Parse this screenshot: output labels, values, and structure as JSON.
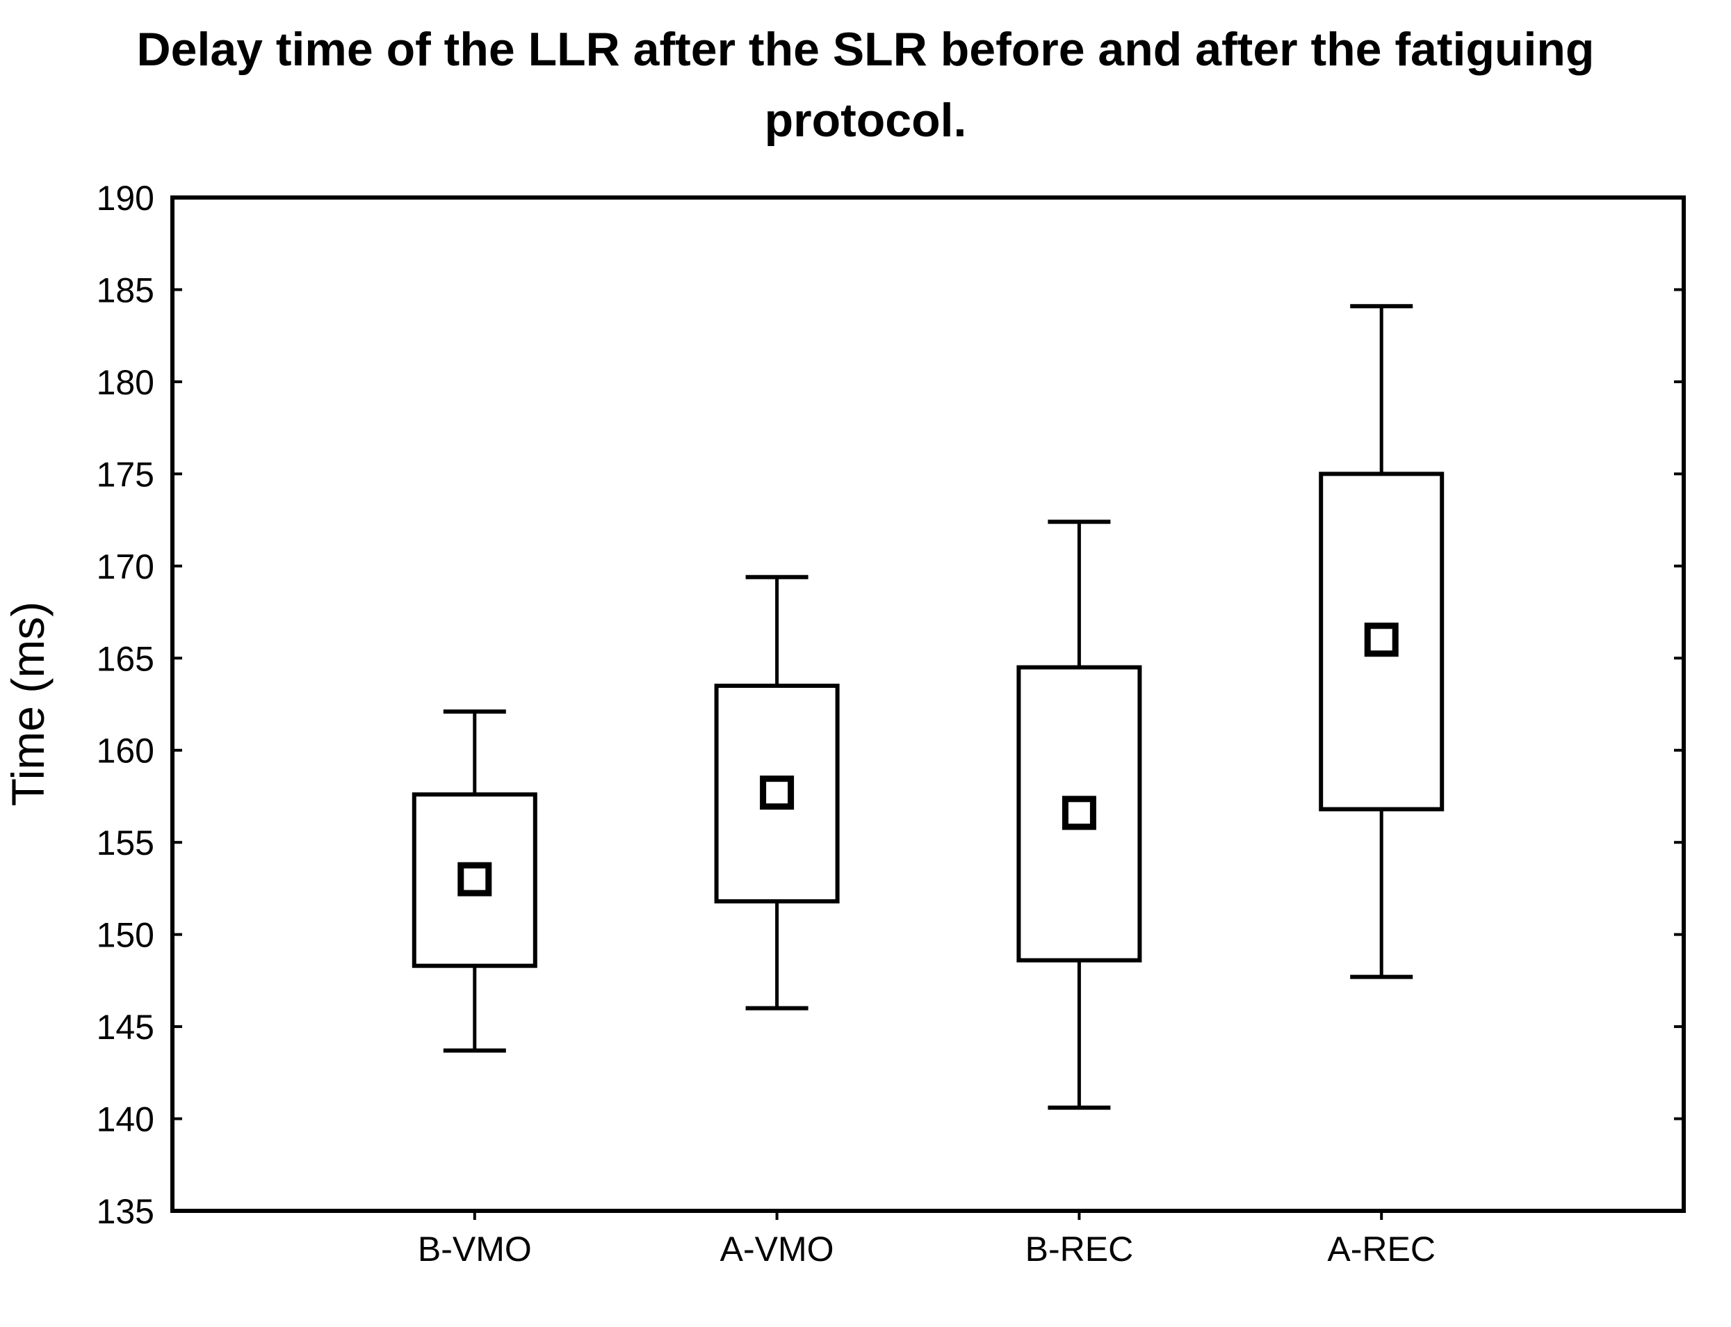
{
  "page": {
    "background": "#ffffff"
  },
  "chart_data": {
    "type": "box",
    "title": "Delay time of the LLR after the SLR before and after the fatiguing protocol.",
    "title_lines": [
      "Delay time of the LLR after the SLR before and after the fatiguing",
      "protocol."
    ],
    "ylabel": "Time (ms)",
    "xlabel": "",
    "categories": [
      "B-VMO",
      "A-VMO",
      "B-REC",
      "A-REC"
    ],
    "ylim": [
      135,
      190
    ],
    "yticks": [
      135,
      140,
      145,
      150,
      155,
      160,
      165,
      170,
      175,
      180,
      185,
      190
    ],
    "grid": false,
    "legend": false,
    "marker": "open-square-mean",
    "series": [
      {
        "name": "B-VMO",
        "whisker_low": 143.7,
        "q1": 148.3,
        "mean": 153.0,
        "q3": 157.6,
        "whisker_high": 162.1
      },
      {
        "name": "A-VMO",
        "whisker_low": 146.0,
        "q1": 151.8,
        "mean": 157.7,
        "q3": 163.5,
        "whisker_high": 169.4
      },
      {
        "name": "B-REC",
        "whisker_low": 140.6,
        "q1": 148.6,
        "mean": 156.6,
        "q3": 164.5,
        "whisker_high": 172.4
      },
      {
        "name": "A-REC",
        "whisker_low": 147.7,
        "q1": 156.8,
        "mean": 166.0,
        "q3": 175.0,
        "whisker_high": 184.1
      }
    ],
    "colors": {
      "stroke": "#000000",
      "box_fill": "#ffffff",
      "background": "#ffffff"
    }
  }
}
